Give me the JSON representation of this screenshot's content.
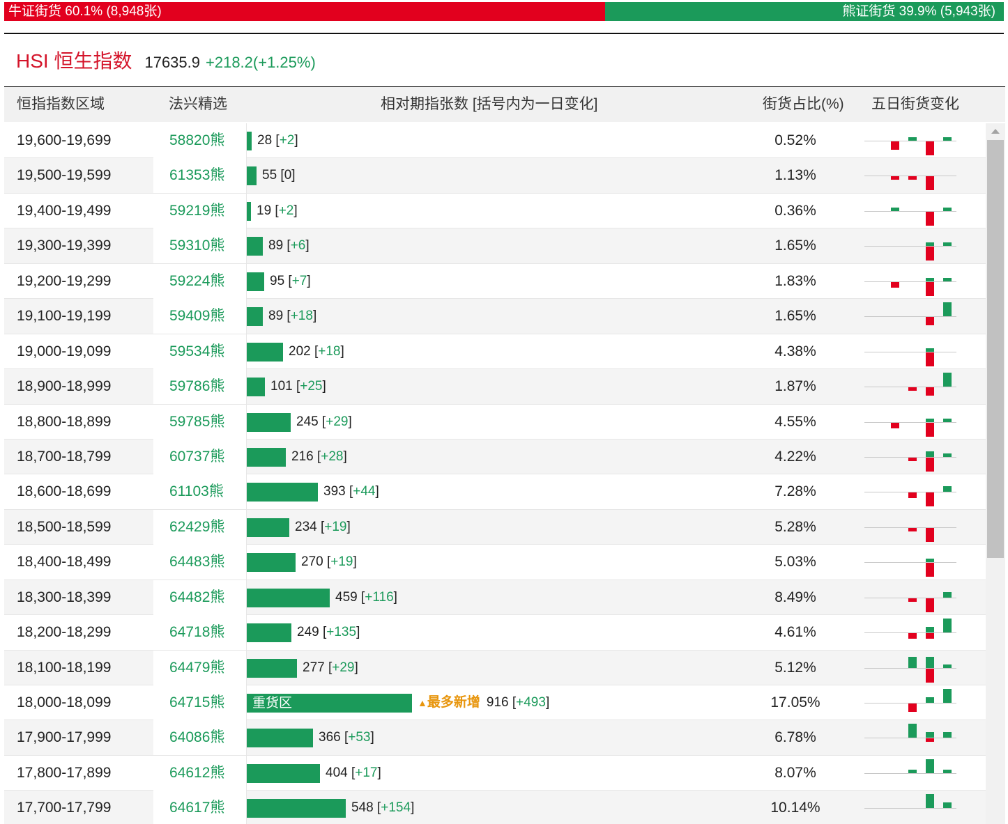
{
  "colors": {
    "bull": "#e2001e",
    "bear": "#1b9a5a",
    "accent_orange": "#e8960e"
  },
  "ratio": {
    "bull_fraction": 0.601,
    "bull_label": "牛证街货",
    "bull_pct": "60.1%",
    "bull_count": "(8,948张)",
    "bear_label": "熊证街货",
    "bear_pct": "39.9%",
    "bear_count": "(5,943张)"
  },
  "index": {
    "name": "HSI 恒生指数",
    "value": "17635.9",
    "change": "+218.2(+1.25%)"
  },
  "table": {
    "headers": {
      "range": "恒指指数区域",
      "code": "法兴精选",
      "bars": "相对期指张数 [括号内为一日变化]",
      "pct": "街货占比(%)",
      "spark": "五日街货变化"
    },
    "scale_max": 916,
    "heavy_zone_label": "重货区",
    "top_increase_marker": "▲",
    "top_increase_label": "最多新增",
    "rows": [
      {
        "range": "19,600-19,699",
        "code": "58820熊",
        "count": 28,
        "delta": "+2",
        "pct": "0.52%",
        "five_day": [
          -3,
          1,
          0,
          -5,
          1
        ]
      },
      {
        "range": "19,500-19,599",
        "code": "61353熊",
        "count": 55,
        "delta": "0",
        "pct": "1.13%",
        "five_day": [
          -1,
          -1,
          0,
          -5,
          0
        ]
      },
      {
        "range": "19,400-19,499",
        "code": "59219熊",
        "count": 19,
        "delta": "+2",
        "pct": "0.36%",
        "five_day": [
          1,
          0,
          0,
          -5,
          1
        ]
      },
      {
        "range": "19,300-19,399",
        "code": "59310熊",
        "count": 89,
        "delta": "+6",
        "pct": "1.65%",
        "five_day": [
          0,
          0,
          1,
          -5,
          1
        ]
      },
      {
        "range": "19,200-19,299",
        "code": "59224熊",
        "count": 95,
        "delta": "+7",
        "pct": "1.83%",
        "five_day": [
          -2,
          0,
          1,
          -5,
          1
        ]
      },
      {
        "range": "19,100-19,199",
        "code": "59409熊",
        "count": 89,
        "delta": "+18",
        "pct": "1.65%",
        "five_day": [
          0,
          0,
          0,
          -3,
          5
        ]
      },
      {
        "range": "19,000-19,099",
        "code": "59534熊",
        "count": 202,
        "delta": "+18",
        "pct": "4.38%",
        "five_day": [
          0,
          0,
          1,
          -5,
          0
        ]
      },
      {
        "range": "18,900-18,999",
        "code": "59786熊",
        "count": 101,
        "delta": "+25",
        "pct": "1.87%",
        "five_day": [
          0,
          -1,
          0,
          -3,
          5
        ]
      },
      {
        "range": "18,800-18,899",
        "code": "59785熊",
        "count": 245,
        "delta": "+29",
        "pct": "4.55%",
        "five_day": [
          -2,
          0,
          1,
          -5,
          1
        ]
      },
      {
        "range": "18,700-18,799",
        "code": "60737熊",
        "count": 216,
        "delta": "+28",
        "pct": "4.22%",
        "five_day": [
          0,
          -1,
          2,
          -5,
          1
        ]
      },
      {
        "range": "18,600-18,699",
        "code": "61103熊",
        "count": 393,
        "delta": "+44",
        "pct": "7.28%",
        "five_day": [
          0,
          -2,
          0,
          -5,
          2
        ]
      },
      {
        "range": "18,500-18,599",
        "code": "62429熊",
        "count": 234,
        "delta": "+19",
        "pct": "5.28%",
        "five_day": [
          0,
          -1,
          0,
          -5,
          0
        ]
      },
      {
        "range": "18,400-18,499",
        "code": "64483熊",
        "count": 270,
        "delta": "+19",
        "pct": "5.03%",
        "five_day": [
          0,
          0,
          1,
          -5,
          0
        ]
      },
      {
        "range": "18,300-18,399",
        "code": "64482熊",
        "count": 459,
        "delta": "+116",
        "pct": "8.49%",
        "five_day": [
          0,
          -1,
          -1,
          -5,
          2
        ]
      },
      {
        "range": "18,200-18,299",
        "code": "64718熊",
        "count": 249,
        "delta": "+135",
        "pct": "4.61%",
        "five_day": [
          0,
          -2,
          2,
          -2,
          5
        ]
      },
      {
        "range": "18,100-18,199",
        "code": "64479熊",
        "count": 277,
        "delta": "+29",
        "pct": "5.12%",
        "five_day": [
          0,
          4,
          4,
          -5,
          1
        ]
      },
      {
        "range": "18,000-18,099",
        "code": "64715熊",
        "count": 916,
        "delta": "+493",
        "pct": "17.05%",
        "five_day": [
          0,
          -3,
          2,
          0,
          5
        ],
        "heavy": true,
        "top_increase": true
      },
      {
        "range": "17,900-17,999",
        "code": "64086熊",
        "count": 366,
        "delta": "+53",
        "pct": "6.78%",
        "five_day": [
          0,
          5,
          2,
          -1,
          2
        ]
      },
      {
        "range": "17,800-17,899",
        "code": "64612熊",
        "count": 404,
        "delta": "+17",
        "pct": "8.07%",
        "five_day": [
          0,
          1,
          0,
          5,
          1
        ]
      },
      {
        "range": "17,700-17,799",
        "code": "64617熊",
        "count": 548,
        "delta": "+154",
        "pct": "10.14%",
        "five_day": [
          0,
          0,
          0,
          5,
          2
        ]
      }
    ]
  }
}
